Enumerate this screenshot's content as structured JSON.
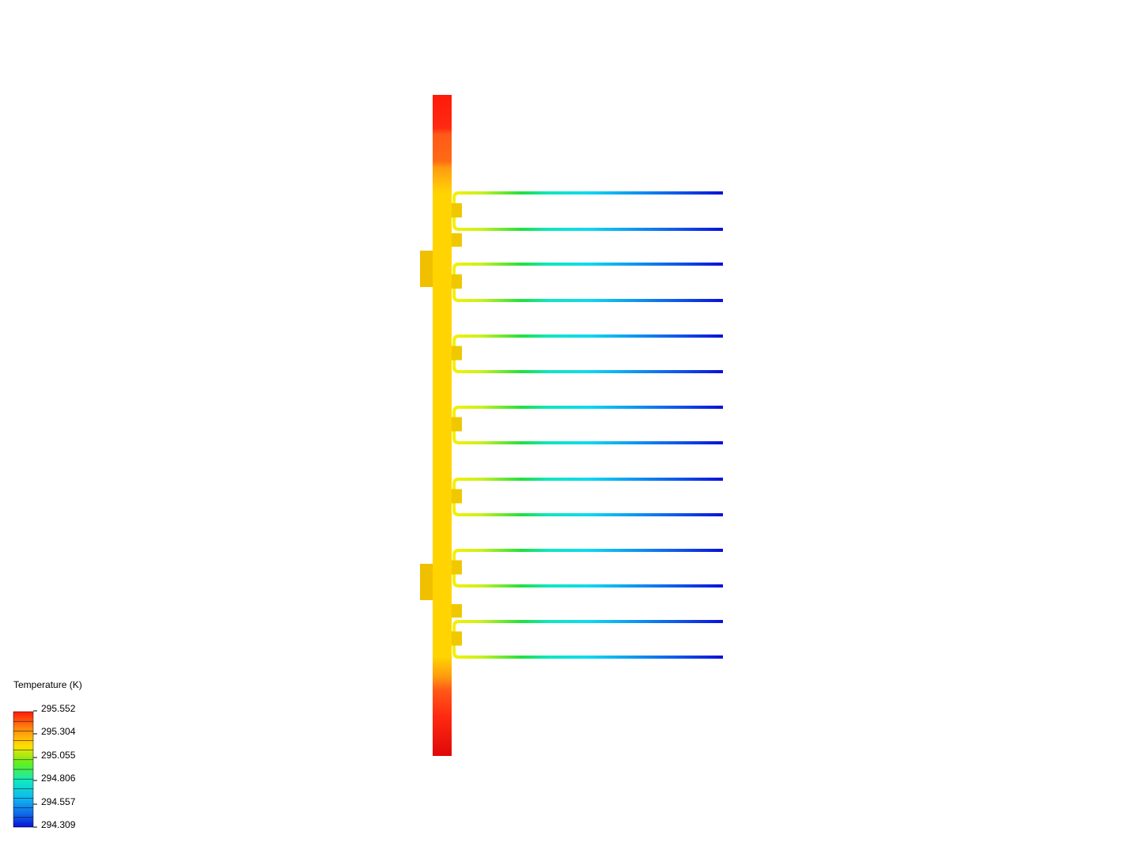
{
  "legend": {
    "title": "Temperature (K)",
    "labels": [
      "295.552",
      "295.304",
      "295.055",
      "294.806",
      "294.557",
      "294.309"
    ]
  }
}
